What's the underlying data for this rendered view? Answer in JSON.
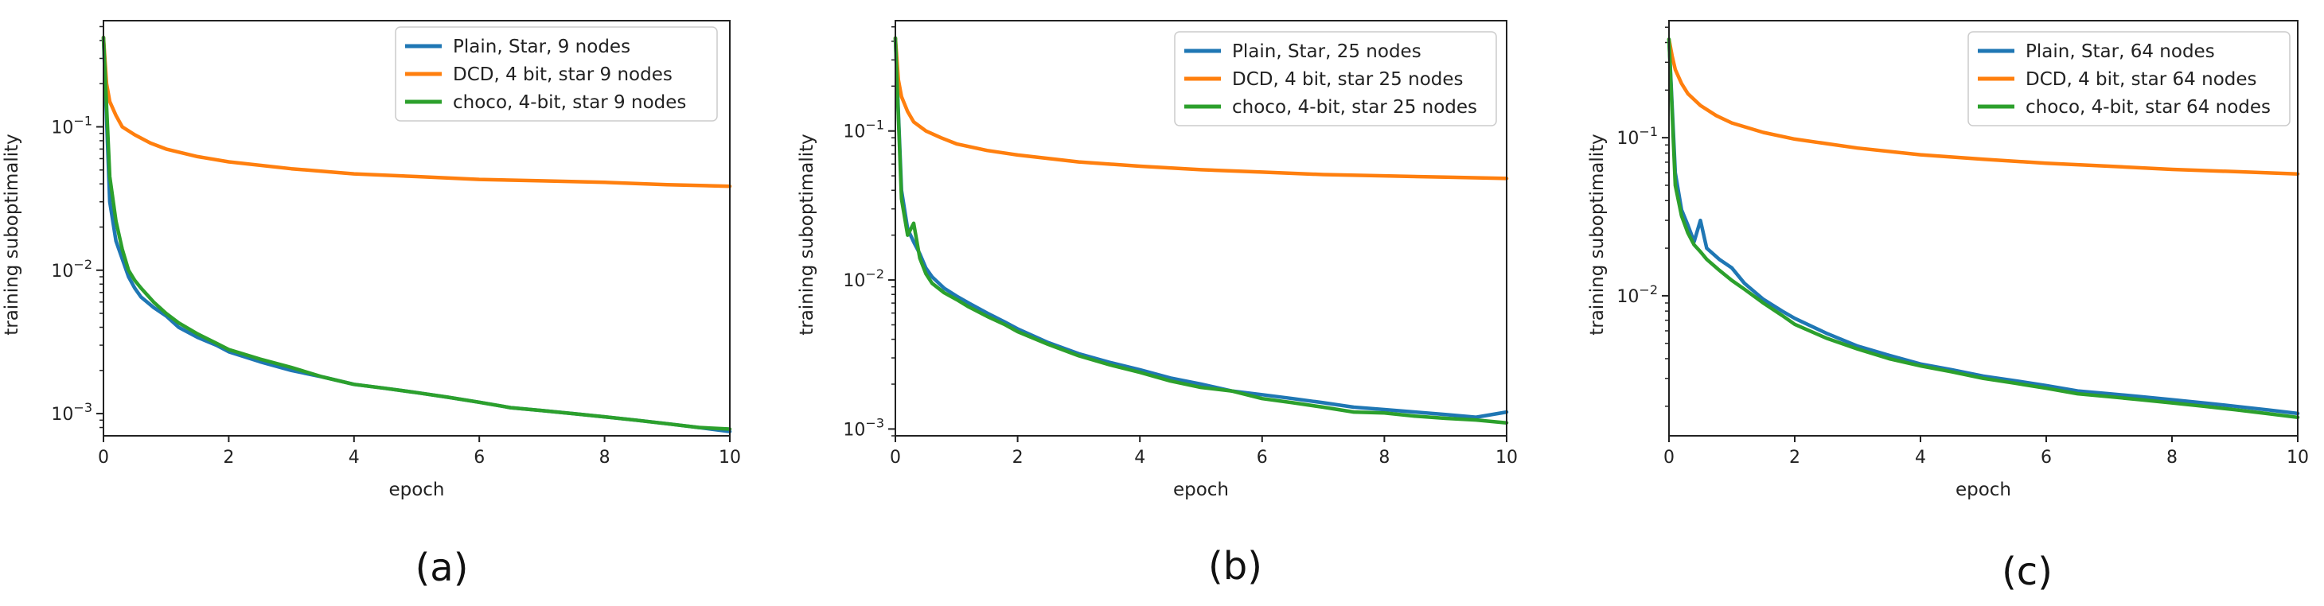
{
  "colors": {
    "plain": "#1f77b4",
    "dcd": "#ff7f0e",
    "choco": "#2ca02c"
  },
  "chart_data": [
    {
      "type": "line",
      "panel_label": "(a)",
      "xlabel": "epoch",
      "ylabel": "training suboptimality",
      "yscale": "log",
      "xlim": [
        0,
        10
      ],
      "ylim": [
        0.0007,
        0.55
      ],
      "xticks": [
        "0",
        "2",
        "4",
        "6",
        "8",
        "10"
      ],
      "yticks": [
        {
          "base": "10",
          "exp": "−3",
          "value": 0.001
        },
        {
          "base": "10",
          "exp": "−2",
          "value": 0.01
        },
        {
          "base": "10",
          "exp": "−1",
          "value": 0.1
        }
      ],
      "legend_position": "upper right",
      "series": [
        {
          "name": "Plain, Star, 9 nodes",
          "color": "#1f77b4",
          "x": [
            0,
            0.1,
            0.2,
            0.3,
            0.4,
            0.5,
            0.6,
            0.8,
            1.0,
            1.2,
            1.5,
            1.8,
            2.0,
            2.5,
            3.0,
            3.5,
            4.0,
            4.5,
            5.0,
            5.5,
            6.0,
            6.5,
            7.0,
            7.5,
            8.0,
            8.5,
            9.0,
            9.5,
            10.0
          ],
          "y": [
            0.42,
            0.03,
            0.016,
            0.012,
            0.009,
            0.0075,
            0.0065,
            0.0055,
            0.0048,
            0.004,
            0.0034,
            0.003,
            0.0027,
            0.0023,
            0.002,
            0.0018,
            0.0016,
            0.0015,
            0.0014,
            0.0013,
            0.0012,
            0.0011,
            0.00105,
            0.001,
            0.00095,
            0.0009,
            0.00085,
            0.0008,
            0.00075
          ]
        },
        {
          "name": "DCD,  4 bit, star 9 nodes",
          "color": "#ff7f0e",
          "x": [
            0,
            0.05,
            0.1,
            0.2,
            0.3,
            0.5,
            0.75,
            1.0,
            1.5,
            2.0,
            3.0,
            4.0,
            5.0,
            6.0,
            7.0,
            8.0,
            9.0,
            10.0
          ],
          "y": [
            0.42,
            0.2,
            0.15,
            0.12,
            0.1,
            0.088,
            0.077,
            0.07,
            0.062,
            0.057,
            0.051,
            0.047,
            0.045,
            0.043,
            0.042,
            0.041,
            0.0395,
            0.0385
          ]
        },
        {
          "name": "choco, 4-bit, star 9 nodes",
          "color": "#2ca02c",
          "x": [
            0,
            0.1,
            0.2,
            0.3,
            0.4,
            0.5,
            0.6,
            0.8,
            1.0,
            1.2,
            1.5,
            1.8,
            2.0,
            2.5,
            3.0,
            3.5,
            4.0,
            4.5,
            5.0,
            5.5,
            6.0,
            6.5,
            7.0,
            7.5,
            8.0,
            8.5,
            9.0,
            9.5,
            10.0
          ],
          "y": [
            0.42,
            0.045,
            0.022,
            0.014,
            0.01,
            0.0085,
            0.0075,
            0.006,
            0.005,
            0.0043,
            0.0036,
            0.0031,
            0.0028,
            0.0024,
            0.0021,
            0.0018,
            0.0016,
            0.0015,
            0.0014,
            0.0013,
            0.0012,
            0.0011,
            0.00105,
            0.001,
            0.00095,
            0.0009,
            0.00085,
            0.0008,
            0.00078
          ]
        }
      ]
    },
    {
      "type": "line",
      "panel_label": "(b)",
      "xlabel": "epoch",
      "ylabel": "training suboptimality",
      "yscale": "log",
      "xlim": [
        0,
        10
      ],
      "ylim": [
        0.0009,
        0.55
      ],
      "xticks": [
        "0",
        "2",
        "4",
        "6",
        "8",
        "10"
      ],
      "yticks": [
        {
          "base": "10",
          "exp": "−3",
          "value": 0.001
        },
        {
          "base": "10",
          "exp": "−2",
          "value": 0.01
        },
        {
          "base": "10",
          "exp": "−1",
          "value": 0.1
        }
      ],
      "legend_position": "upper right",
      "series": [
        {
          "name": "Plain, Star, 25 nodes",
          "color": "#1f77b4",
          "x": [
            0,
            0.1,
            0.2,
            0.3,
            0.4,
            0.5,
            0.6,
            0.8,
            1.0,
            1.2,
            1.5,
            1.8,
            2.0,
            2.5,
            3.0,
            3.5,
            4.0,
            4.5,
            5.0,
            5.5,
            6.0,
            6.5,
            7.0,
            7.5,
            8.0,
            8.5,
            9.0,
            9.5,
            10.0
          ],
          "y": [
            0.42,
            0.04,
            0.022,
            0.018,
            0.015,
            0.012,
            0.0105,
            0.0088,
            0.0078,
            0.007,
            0.006,
            0.0052,
            0.0047,
            0.0038,
            0.0032,
            0.0028,
            0.0025,
            0.0022,
            0.002,
            0.0018,
            0.0017,
            0.0016,
            0.0015,
            0.0014,
            0.00135,
            0.0013,
            0.00125,
            0.0012,
            0.0013
          ]
        },
        {
          "name": "DCD,  4 bit, star 25 nodes",
          "color": "#ff7f0e",
          "x": [
            0,
            0.05,
            0.1,
            0.2,
            0.3,
            0.5,
            0.75,
            1.0,
            1.5,
            2.0,
            3.0,
            4.0,
            5.0,
            6.0,
            7.0,
            8.0,
            9.0,
            10.0
          ],
          "y": [
            0.42,
            0.22,
            0.17,
            0.135,
            0.115,
            0.1,
            0.09,
            0.082,
            0.074,
            0.069,
            0.062,
            0.058,
            0.055,
            0.053,
            0.051,
            0.05,
            0.049,
            0.048
          ]
        },
        {
          "name": "choco, 4-bit, star 25 nodes",
          "color": "#2ca02c",
          "x": [
            0,
            0.1,
            0.2,
            0.3,
            0.4,
            0.5,
            0.6,
            0.8,
            1.0,
            1.2,
            1.5,
            1.8,
            2.0,
            2.5,
            3.0,
            3.5,
            4.0,
            4.5,
            5.0,
            5.5,
            6.0,
            6.5,
            7.0,
            7.5,
            8.0,
            8.5,
            9.0,
            9.5,
            10.0
          ],
          "y": [
            0.42,
            0.035,
            0.02,
            0.024,
            0.014,
            0.011,
            0.0095,
            0.0082,
            0.0074,
            0.0066,
            0.0057,
            0.005,
            0.0045,
            0.0037,
            0.0031,
            0.0027,
            0.0024,
            0.0021,
            0.0019,
            0.0018,
            0.0016,
            0.0015,
            0.0014,
            0.0013,
            0.00128,
            0.00122,
            0.00118,
            0.00115,
            0.0011
          ]
        }
      ]
    },
    {
      "type": "line",
      "panel_label": "(c)",
      "xlabel": "epoch",
      "ylabel": "training suboptimality",
      "yscale": "log",
      "xlim": [
        0,
        10
      ],
      "ylim": [
        0.0013,
        0.55
      ],
      "xticks": [
        "0",
        "2",
        "4",
        "6",
        "8",
        "10"
      ],
      "yticks": [
        {
          "base": "10",
          "exp": "−2",
          "value": 0.01
        },
        {
          "base": "10",
          "exp": "−1",
          "value": 0.1
        }
      ],
      "legend_position": "upper right",
      "series": [
        {
          "name": "Plain, Star, 64 nodes",
          "color": "#1f77b4",
          "x": [
            0,
            0.1,
            0.2,
            0.3,
            0.4,
            0.5,
            0.6,
            0.8,
            1.0,
            1.2,
            1.5,
            1.8,
            2.0,
            2.5,
            3.0,
            3.5,
            4.0,
            4.5,
            5.0,
            5.5,
            6.0,
            6.5,
            7.0,
            7.5,
            8.0,
            8.5,
            9.0,
            9.5,
            10.0
          ],
          "y": [
            0.42,
            0.06,
            0.035,
            0.028,
            0.022,
            0.03,
            0.02,
            0.017,
            0.015,
            0.012,
            0.0095,
            0.008,
            0.0072,
            0.0058,
            0.0048,
            0.0042,
            0.0037,
            0.0034,
            0.0031,
            0.0029,
            0.0027,
            0.0025,
            0.0024,
            0.0023,
            0.0022,
            0.0021,
            0.002,
            0.0019,
            0.0018
          ]
        },
        {
          "name": "DCD,  4 bit, star 64 nodes",
          "color": "#ff7f0e",
          "x": [
            0,
            0.05,
            0.1,
            0.2,
            0.3,
            0.5,
            0.75,
            1.0,
            1.5,
            2.0,
            3.0,
            4.0,
            5.0,
            6.0,
            7.0,
            8.0,
            9.0,
            10.0
          ],
          "y": [
            0.42,
            0.33,
            0.27,
            0.22,
            0.19,
            0.16,
            0.138,
            0.124,
            0.108,
            0.098,
            0.086,
            0.078,
            0.073,
            0.069,
            0.066,
            0.063,
            0.061,
            0.059
          ]
        },
        {
          "name": "choco, 4-bit, star 64 nodes",
          "color": "#2ca02c",
          "x": [
            0,
            0.1,
            0.2,
            0.3,
            0.4,
            0.5,
            0.6,
            0.8,
            1.0,
            1.2,
            1.5,
            1.8,
            2.0,
            2.5,
            3.0,
            3.5,
            4.0,
            4.5,
            5.0,
            5.5,
            6.0,
            6.5,
            7.0,
            7.5,
            8.0,
            8.5,
            9.0,
            9.5,
            10.0
          ],
          "y": [
            0.42,
            0.05,
            0.032,
            0.025,
            0.021,
            0.019,
            0.017,
            0.0145,
            0.0125,
            0.011,
            0.009,
            0.0075,
            0.0066,
            0.0054,
            0.0046,
            0.004,
            0.0036,
            0.0033,
            0.003,
            0.0028,
            0.0026,
            0.0024,
            0.0023,
            0.0022,
            0.0021,
            0.002,
            0.0019,
            0.0018,
            0.0017
          ]
        }
      ]
    }
  ]
}
